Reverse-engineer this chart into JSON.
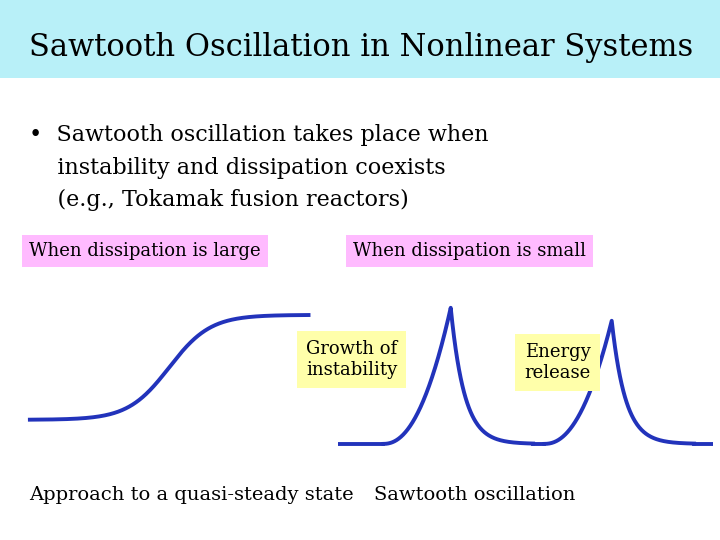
{
  "title": "Sawtooth Oscillation in Nonlinear Systems",
  "title_bg": "#b8f0f8",
  "bullet_text_line1": "•  Sawtooth oscillation takes place when",
  "bullet_text_line2": "    instability and dissipation coexists",
  "bullet_text_line3": "    (e.g., Tokamak fusion reactors)",
  "label_left_bg": "#ffbbff",
  "label_right_bg": "#ffbbff",
  "label_left": "When dissipation is large",
  "label_right": "When dissipation is small",
  "annot_growth_bg": "#ffffaa",
  "annot_energy_bg": "#ffffaa",
  "annot_growth": "Growth of\ninstability",
  "annot_energy": "Energy\nrelease",
  "caption_left": "Approach to a quasi-steady state",
  "caption_right": "Sawtooth oscillation",
  "curve_color": "#2233bb",
  "curve_lw": 2.8,
  "bg_color": "#ffffff",
  "title_fontsize": 22,
  "body_fontsize": 16,
  "label_fontsize": 13,
  "caption_fontsize": 14,
  "annot_fontsize": 13
}
